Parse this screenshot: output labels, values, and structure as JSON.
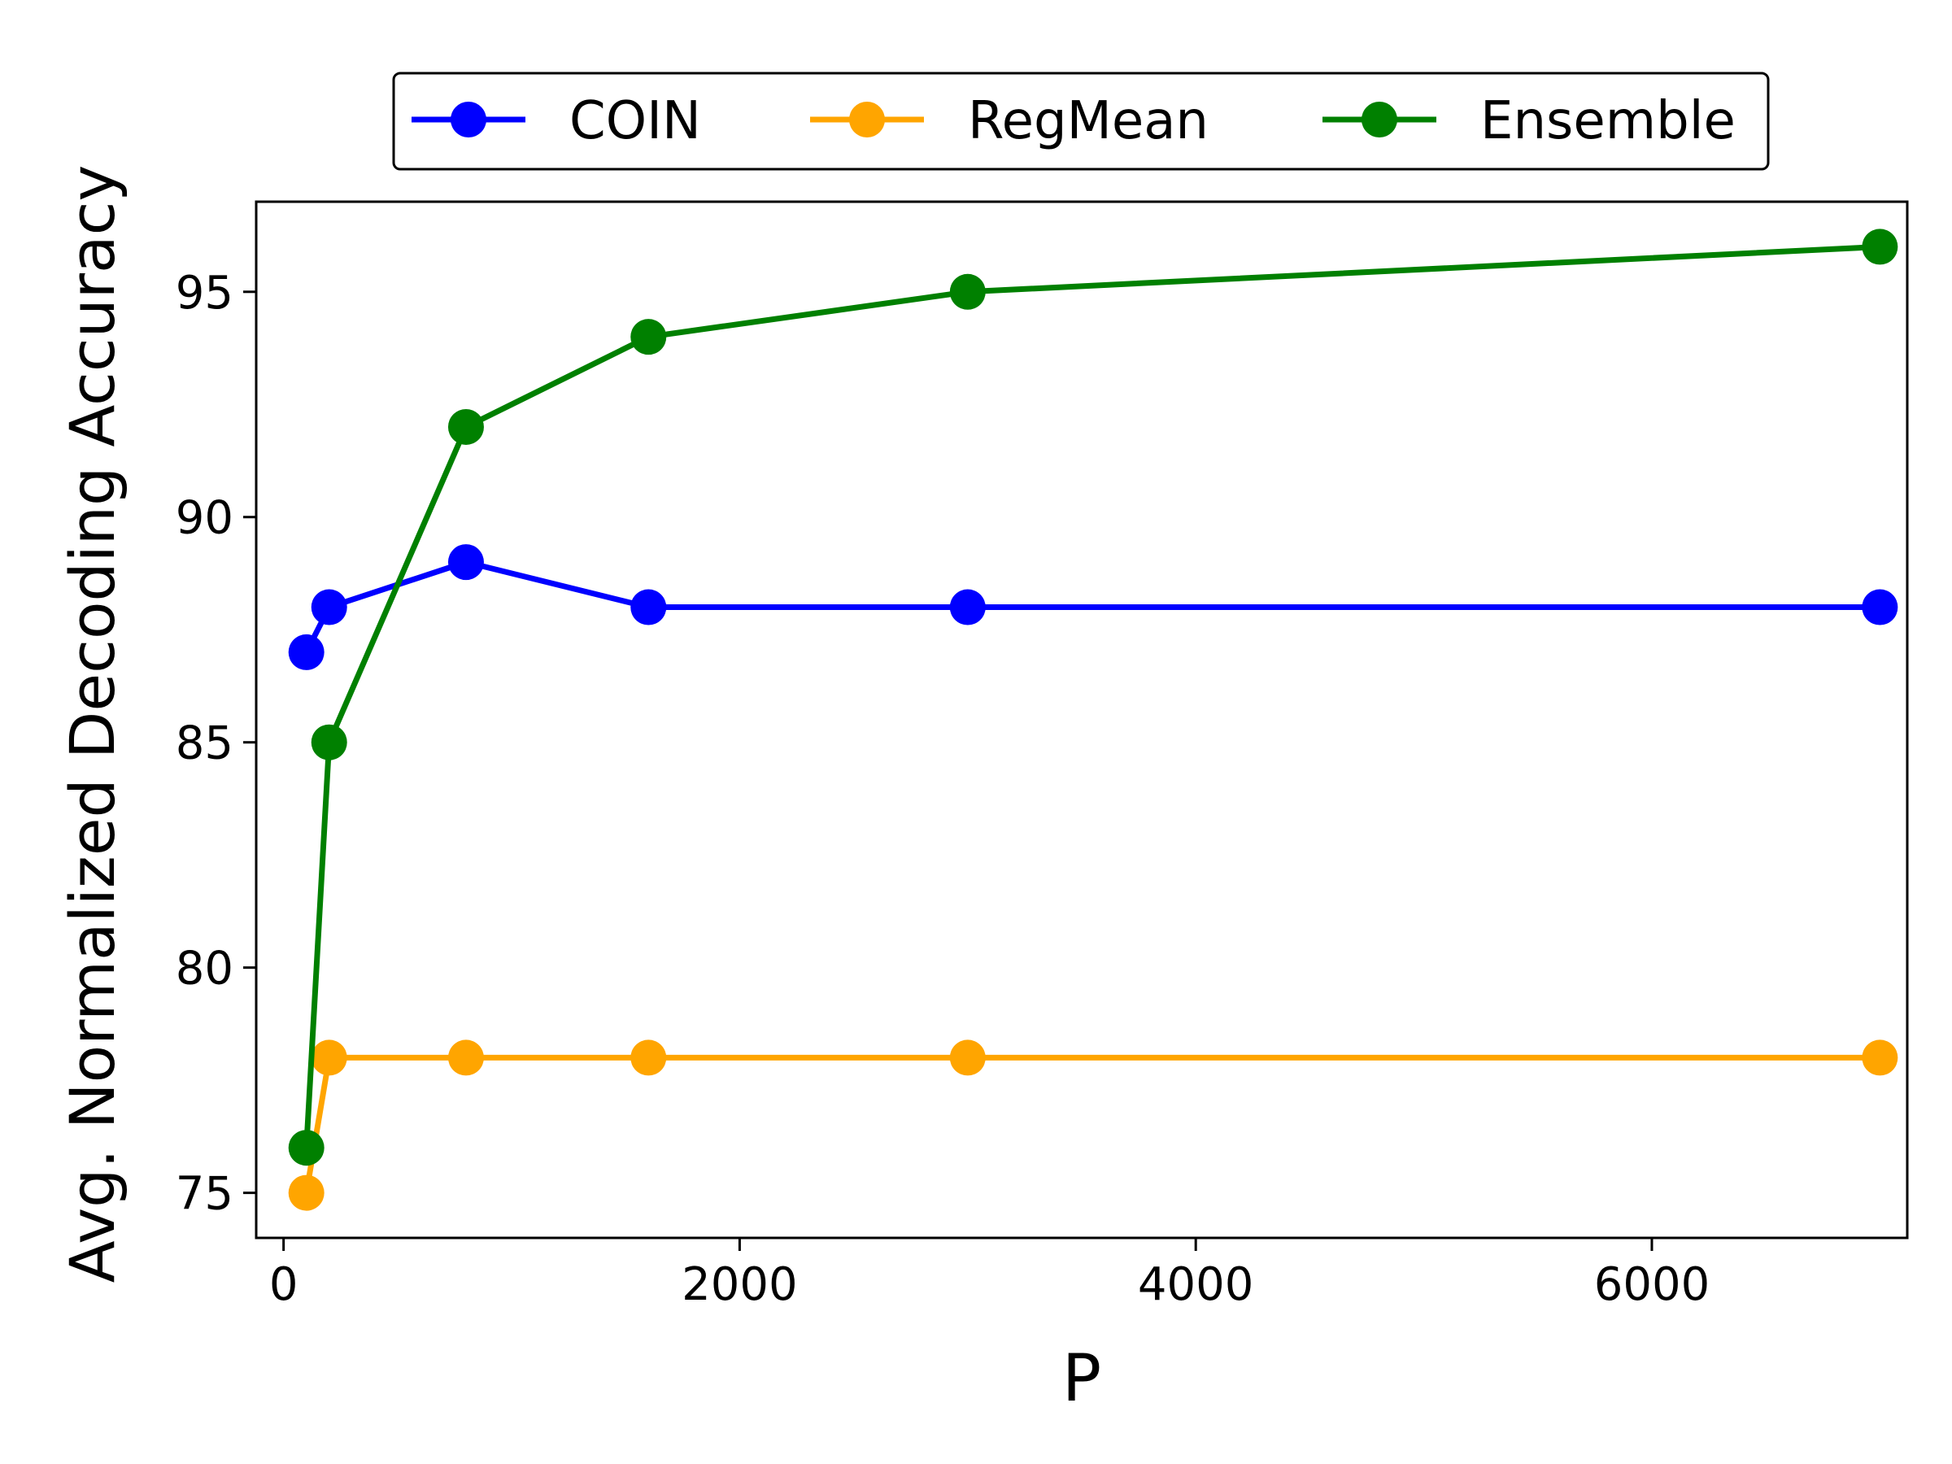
{
  "chart_data": {
    "type": "line",
    "title": "",
    "xlabel": "P",
    "ylabel": "Avg. Normalized Decoding Accuracy",
    "xlim": [
      -120,
      7120
    ],
    "ylim": [
      74,
      97
    ],
    "x_ticks": [
      0,
      2000,
      4000,
      6000
    ],
    "y_ticks": [
      75,
      80,
      85,
      90,
      95
    ],
    "grid": false,
    "legend": {
      "placement": "top-center-outside",
      "columns": 3
    },
    "series": [
      {
        "name": "COIN",
        "color": "#0000ff",
        "x": [
          100,
          200,
          800,
          1600,
          3000,
          7000
        ],
        "y": [
          87,
          88,
          89,
          88,
          88,
          88
        ]
      },
      {
        "name": "RegMean",
        "color": "#ffa500",
        "x": [
          100,
          200,
          800,
          1600,
          3000,
          7000
        ],
        "y": [
          75,
          78,
          78,
          78,
          78,
          78
        ]
      },
      {
        "name": "Ensemble",
        "color": "#008000",
        "x": [
          100,
          200,
          800,
          1600,
          3000,
          7000
        ],
        "y": [
          76,
          85,
          92,
          94,
          95,
          96
        ]
      }
    ]
  }
}
